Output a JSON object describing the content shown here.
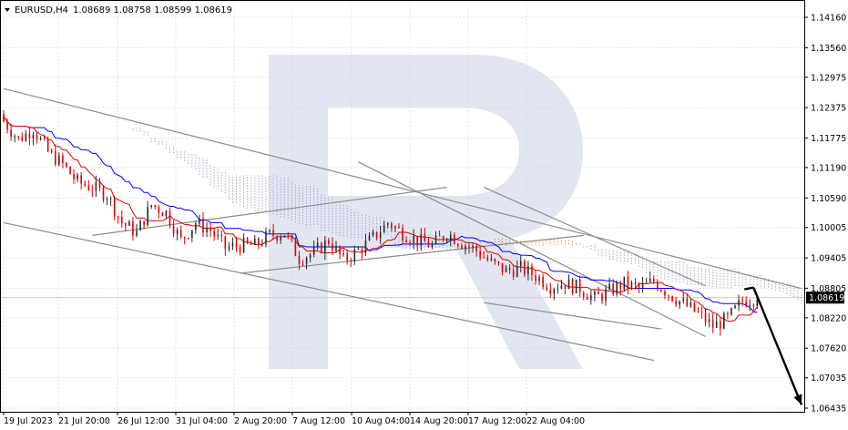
{
  "header": {
    "symbol": "EURUSD,H4",
    "ohlc": "1.08689 1.08758 1.08599 1.08619"
  },
  "colors": {
    "bull": "#2a2a2a",
    "bear": "#e00000",
    "kijun": "#0000ff",
    "tenkan": "#e00000",
    "cloud_up": "#e8842a",
    "cloud_down": "#a89ad0",
    "trendline": "#8c8c8c",
    "arrow": "#000000",
    "grid": "#e6e6e6",
    "watermark": "#c8d2e6",
    "price_badge": "#000000"
  },
  "chart_data": {
    "type": "candlestick",
    "symbol": "EURUSD",
    "timeframe": "H4",
    "current_price": 1.08619,
    "ylim": [
      1.0643,
      1.1448
    ],
    "y_ticks": [
      "1.14160",
      "1.13560",
      "1.12975",
      "1.12375",
      "1.11775",
      "1.11190",
      "1.10590",
      "1.10005",
      "1.09405",
      "1.08805",
      "1.08220",
      "1.07620",
      "1.07035",
      "1.06435"
    ],
    "x_ticks": [
      "19 Jul 2023",
      "21 Jul 20:00",
      "26 Jul 12:00",
      "31 Jul 04:00",
      "2 Aug 20:00",
      "7 Aug 12:00",
      "10 Aug 04:00",
      "14 Aug 20:00",
      "17 Aug 12:00",
      "22 Aug 04:00"
    ],
    "price_label": "1.08619",
    "grid": true,
    "indicators": [
      "Ichimoku Kinko Hyo: Tenkan-sen (red)",
      "Kijun-sen (blue)",
      "Kumo cloud (dotted)"
    ],
    "close_path": [
      [
        0,
        1.121
      ],
      [
        4,
        1.1175
      ],
      [
        8,
        1.1195
      ],
      [
        12,
        1.115
      ],
      [
        16,
        1.1125
      ],
      [
        20,
        1.109
      ],
      [
        24,
        1.108
      ],
      [
        28,
        1.1065
      ],
      [
        32,
        1.101
      ],
      [
        36,
        1.099
      ],
      [
        40,
        1.1045
      ],
      [
        44,
        1.103
      ],
      [
        48,
        1.0975
      ],
      [
        52,
        1.101
      ],
      [
        56,
        1.0995
      ],
      [
        60,
        1.096
      ],
      [
        64,
        1.0965
      ],
      [
        68,
        1.0965
      ],
      [
        72,
        1.0985
      ],
      [
        76,
        1.099
      ],
      [
        80,
        1.094
      ],
      [
        84,
        1.095
      ],
      [
        88,
        1.0975
      ],
      [
        92,
        1.0935
      ],
      [
        96,
        1.0955
      ],
      [
        100,
        1.098
      ],
      [
        104,
        1.101
      ],
      [
        108,
        1.099
      ],
      [
        112,
        1.0975
      ],
      [
        116,
        1.0965
      ],
      [
        120,
        1.099
      ],
      [
        124,
        1.097
      ],
      [
        128,
        1.0955
      ],
      [
        132,
        1.093
      ],
      [
        136,
        1.0915
      ],
      [
        140,
        1.092
      ],
      [
        144,
        1.0905
      ],
      [
        148,
        1.0885
      ],
      [
        152,
        1.089
      ],
      [
        156,
        1.088
      ],
      [
        160,
        1.086
      ],
      [
        164,
        1.0875
      ],
      [
        168,
        1.089
      ],
      [
        172,
        1.088
      ],
      [
        176,
        1.0895
      ],
      [
        180,
        1.087
      ],
      [
        184,
        1.085
      ],
      [
        188,
        1.083
      ],
      [
        192,
        1.0805
      ],
      [
        196,
        1.082
      ],
      [
        200,
        1.0855
      ],
      [
        204,
        1.0862
      ]
    ],
    "annotations": [
      {
        "type": "forecast-arrow",
        "from": [
          203,
          1.0882
        ],
        "to": [
          216,
          1.065
        ],
        "meaning": "projected decline"
      }
    ]
  }
}
